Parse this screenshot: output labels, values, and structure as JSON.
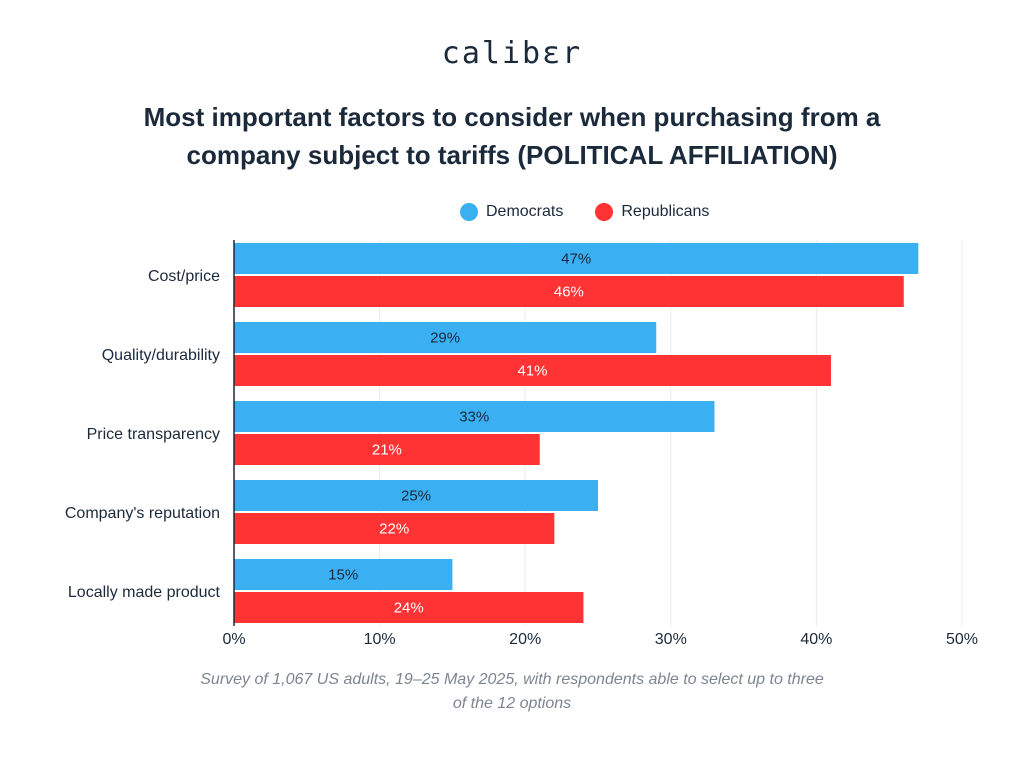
{
  "brand": {
    "logo_text": "calibεr"
  },
  "colors": {
    "democrats": "#3aaff2",
    "republicans": "#ff3234",
    "grid": "#e9ecef",
    "axis": "#1b2a3b"
  },
  "chart_data": {
    "type": "bar",
    "orientation": "horizontal",
    "title": "Most important factors to consider when purchasing from a company subject to tariffs (POLITICAL AFFILIATION)",
    "categories": [
      "Cost/price",
      "Quality/durability",
      "Price transparency",
      "Company's reputation",
      "Locally made product"
    ],
    "series": [
      {
        "name": "Democrats",
        "values": [
          47,
          29,
          33,
          25,
          15
        ],
        "labels": [
          "47%",
          "29%",
          "33%",
          "25%",
          "15%"
        ]
      },
      {
        "name": "Republicans",
        "values": [
          46,
          41,
          21,
          22,
          24
        ],
        "labels": [
          "46%",
          "41%",
          "21%",
          "22%",
          "24%"
        ]
      }
    ],
    "xlim": [
      0,
      50
    ],
    "xticks": [
      0,
      10,
      20,
      30,
      40,
      50
    ],
    "xtick_labels": [
      "0%",
      "10%",
      "20%",
      "30%",
      "40%",
      "50%"
    ],
    "grid": true,
    "legend": "top-center",
    "note": "Survey of 1,067 US adults, 19–25 May 2025, with respondents able to select up to three of the 12 options"
  }
}
